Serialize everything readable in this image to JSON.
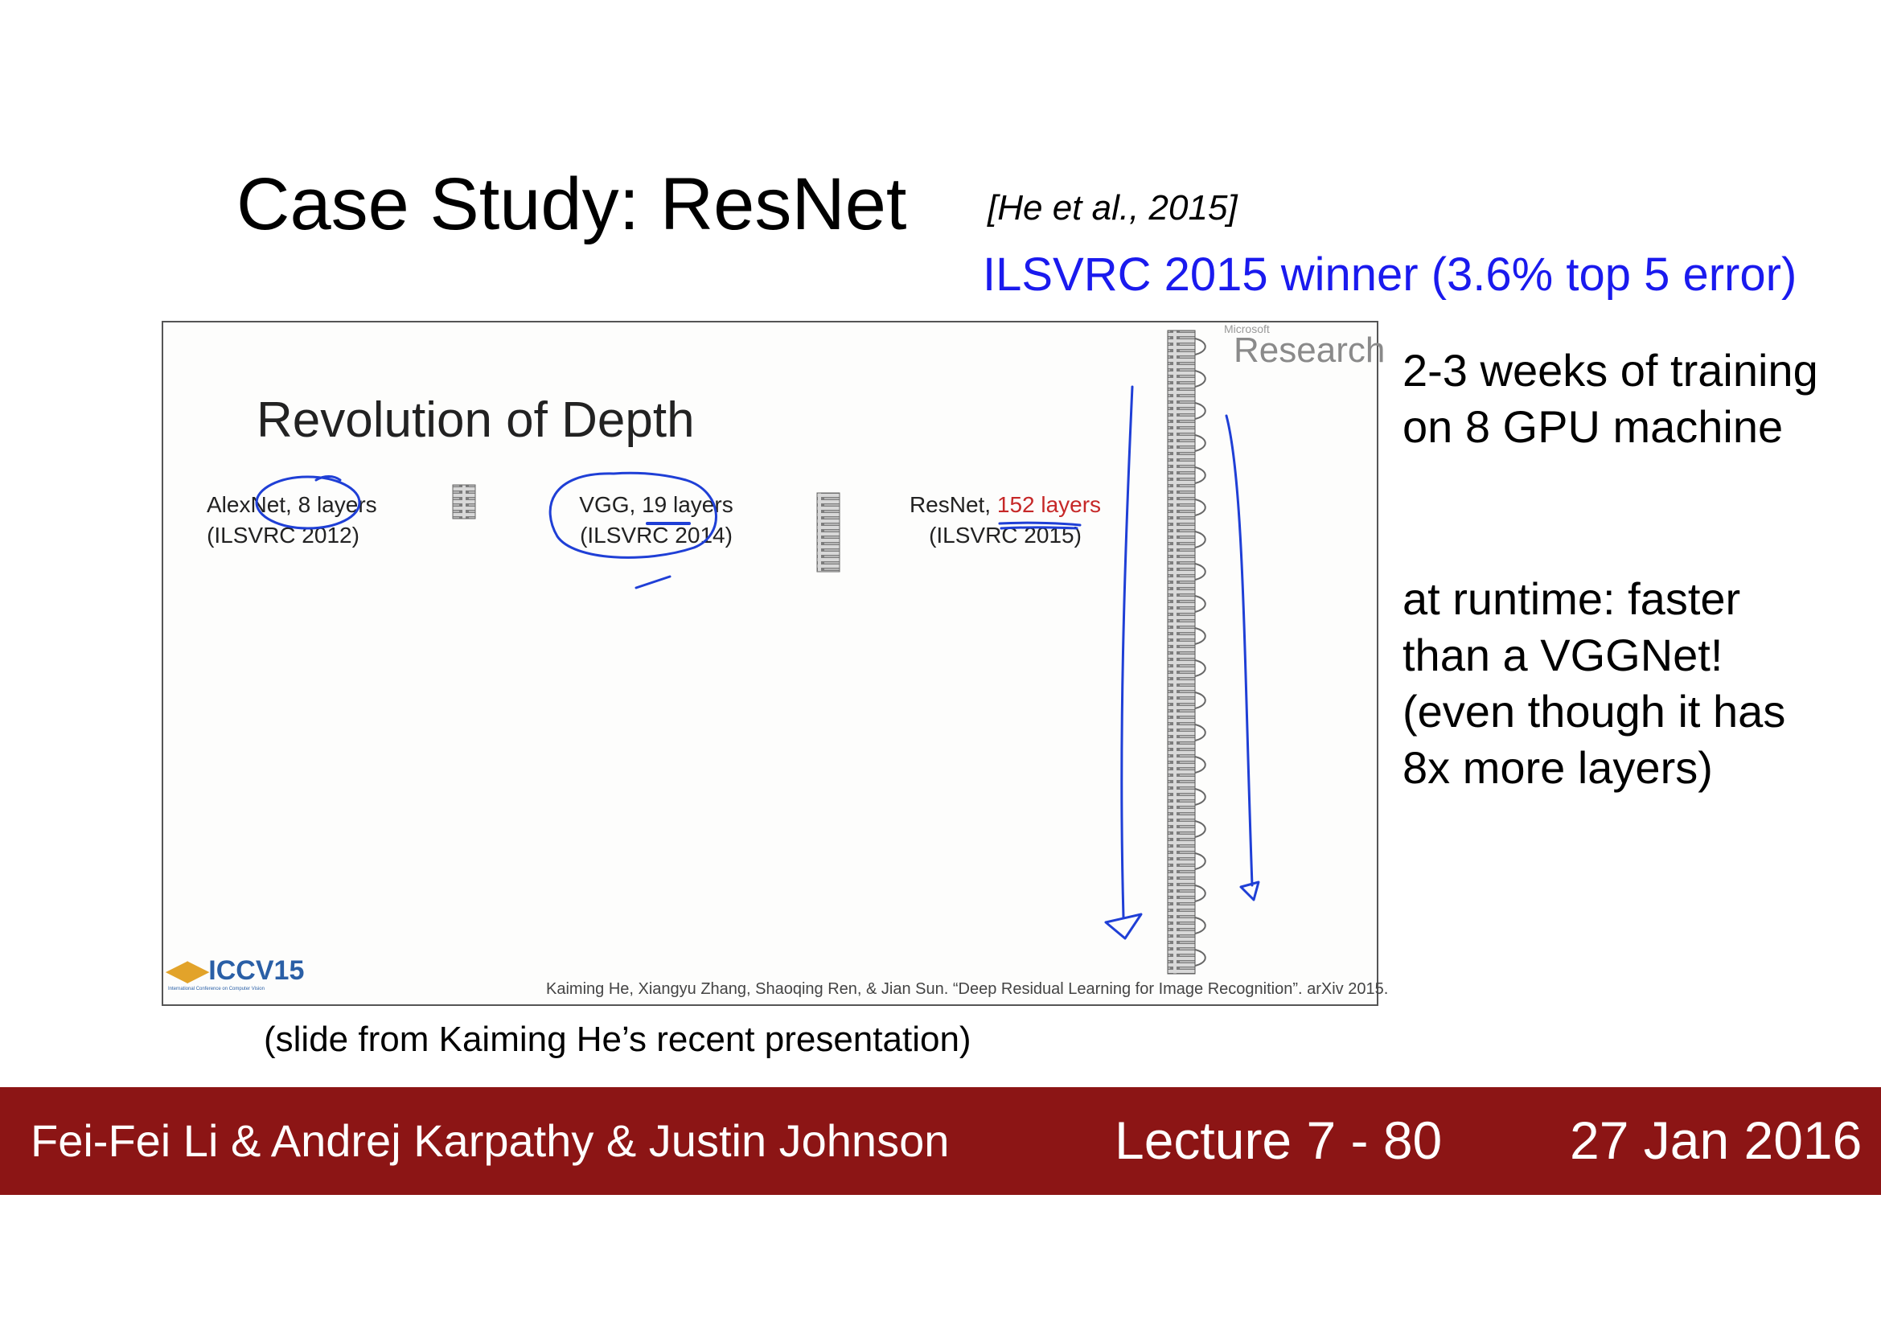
{
  "slide": {
    "title": "Case Study: ResNet",
    "citation": "[He et al., 2015]",
    "subtitle": "ILSVRC 2015 winner (3.6% top 5 error)"
  },
  "embedded_slide": {
    "org_small": "Microsoft",
    "org": "Research",
    "heading": "Revolution of Depth",
    "networks": [
      {
        "name": "AlexNet,",
        "layers": "8 layers",
        "event": "(ILSVRC 2012)"
      },
      {
        "name": "VGG,",
        "layers": "19 layers",
        "event": "(ILSVRC 2014)"
      },
      {
        "name": "ResNet,",
        "layers": "152 layers",
        "event": "(ILSVRC 2015)"
      }
    ],
    "logo": "ICCV15",
    "logo_sub": "International Conference on Computer Vision",
    "reference": "Kaiming He, Xiangyu Zhang, Shaoqing Ren, & Jian Sun. “Deep Residual Learning for Image Recognition”. arXiv 2015."
  },
  "caption": "(slide from Kaiming He’s recent presentation)",
  "side_notes": {
    "training": [
      "2-3 weeks of training",
      "on 8 GPU machine"
    ],
    "runtime": [
      "at runtime: faster",
      "than a VGGNet!",
      "(even though it has",
      "8x more layers)"
    ]
  },
  "footer": {
    "authors": "Fei-Fei Li & Andrej Karpathy & Justin Johnson",
    "lecture": "Lecture 7 - 80",
    "date": "27 Jan 2016"
  },
  "colors": {
    "footer_bg": "#8c1515",
    "subtitle": "#1a1aee",
    "annotation_ink": "#1f3fd6",
    "resnet_layers": "#c62828"
  }
}
